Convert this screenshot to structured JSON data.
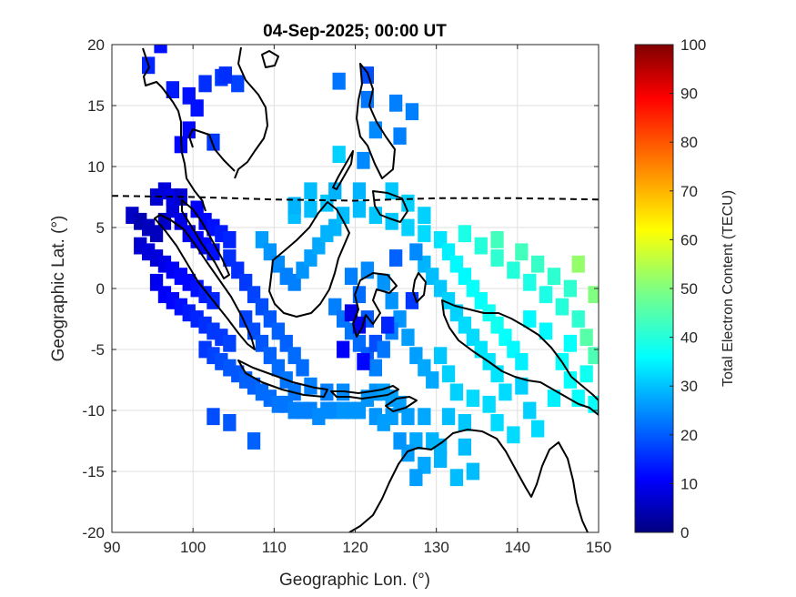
{
  "chart_data": {
    "type": "heatmap",
    "title": "04-Sep-2025; 00:00 UT",
    "xlabel": "Geographic Lon. (°)",
    "ylabel": "Geographic Lat. (°)",
    "xlim": [
      90,
      150
    ],
    "ylim": [
      -20,
      20
    ],
    "xticks": [
      90,
      100,
      110,
      120,
      130,
      140,
      150
    ],
    "yticks": [
      -20,
      -15,
      -10,
      -5,
      0,
      5,
      10,
      15,
      20
    ],
    "grid": true,
    "colorbar": {
      "label": "Total Electron Content (TECU)",
      "range": [
        0,
        100
      ],
      "ticks": [
        0,
        10,
        20,
        30,
        40,
        50,
        60,
        70,
        80,
        90,
        100
      ],
      "colormap": "jet"
    },
    "magnetic_equator": [
      [
        90,
        7.6
      ],
      [
        100,
        7.5
      ],
      [
        110,
        7.3
      ],
      [
        120,
        7.2
      ],
      [
        130,
        7.4
      ],
      [
        140,
        7.4
      ],
      [
        150,
        7.3
      ]
    ],
    "cells": [
      [
        94.5,
        18.3,
        16
      ],
      [
        97.5,
        16.3,
        15
      ],
      [
        99.5,
        15.8,
        14
      ],
      [
        101.5,
        16.8,
        17
      ],
      [
        103.5,
        17.3,
        18
      ],
      [
        105.5,
        16.8,
        19
      ],
      [
        100.5,
        14.8,
        14
      ],
      [
        98.5,
        11.8,
        13
      ],
      [
        102.5,
        12.0,
        18
      ],
      [
        104.0,
        17.5,
        17
      ],
      [
        118.0,
        17.0,
        24
      ],
      [
        121.5,
        17.5,
        20
      ],
      [
        121.5,
        15.5,
        24
      ],
      [
        125.0,
        15.2,
        25
      ],
      [
        127.0,
        14.5,
        25
      ],
      [
        122.5,
        13.0,
        26
      ],
      [
        125.5,
        12.5,
        25
      ],
      [
        118.0,
        11.0,
        33
      ],
      [
        121.0,
        10.5,
        26
      ],
      [
        92.5,
        6.0,
        7
      ],
      [
        93.5,
        5.5,
        5
      ],
      [
        94.5,
        5.0,
        6
      ],
      [
        95.5,
        4.5,
        6
      ],
      [
        96.5,
        5.5,
        7
      ],
      [
        97.5,
        6.5,
        9
      ],
      [
        98.5,
        5.5,
        10
      ],
      [
        99.5,
        4.5,
        11
      ],
      [
        100.5,
        4.0,
        13
      ],
      [
        101.5,
        3.5,
        13
      ],
      [
        102.5,
        3.0,
        14
      ],
      [
        95.5,
        7.5,
        8
      ],
      [
        96.5,
        8.0,
        9
      ],
      [
        97.5,
        7.5,
        10
      ],
      [
        98.5,
        7.5,
        8
      ],
      [
        100.5,
        6.5,
        12
      ],
      [
        101.5,
        5.5,
        13
      ],
      [
        102.5,
        5.0,
        14
      ],
      [
        103.5,
        4.5,
        15
      ],
      [
        104.5,
        4.0,
        16
      ],
      [
        93.5,
        3.5,
        8
      ],
      [
        94.5,
        3.0,
        9
      ],
      [
        95.5,
        2.5,
        9
      ],
      [
        96.5,
        2.0,
        10
      ],
      [
        97.5,
        1.5,
        12
      ],
      [
        98.5,
        1.0,
        13
      ],
      [
        99.5,
        0.5,
        13
      ],
      [
        100.5,
        0.0,
        14
      ],
      [
        101.5,
        -0.5,
        15
      ],
      [
        102.5,
        -1.0,
        16
      ],
      [
        95.5,
        0.5,
        11
      ],
      [
        96.5,
        -0.5,
        12
      ],
      [
        97.5,
        -1.0,
        13
      ],
      [
        98.5,
        -1.5,
        14
      ],
      [
        99.5,
        -2.0,
        15
      ],
      [
        100.5,
        -2.5,
        16
      ],
      [
        101.5,
        -3.0,
        17
      ],
      [
        102.5,
        -3.5,
        18
      ],
      [
        103.5,
        -4.0,
        18
      ],
      [
        104.5,
        -4.5,
        19
      ],
      [
        101.5,
        -5.0,
        18
      ],
      [
        102.5,
        -5.5,
        19
      ],
      [
        103.5,
        -6.0,
        20
      ],
      [
        104.5,
        -6.5,
        21
      ],
      [
        105.5,
        -7.0,
        21
      ],
      [
        106.5,
        -7.5,
        22
      ],
      [
        107.5,
        -8.0,
        22
      ],
      [
        108.5,
        -8.5,
        23
      ],
      [
        109.5,
        -9.0,
        23
      ],
      [
        110.5,
        -9.5,
        24
      ],
      [
        111.5,
        -9.5,
        24
      ],
      [
        112.5,
        -10.0,
        25
      ],
      [
        113.5,
        -10.0,
        25
      ],
      [
        114.5,
        -10.0,
        25
      ],
      [
        115.5,
        -10.5,
        26
      ],
      [
        116.5,
        -10.0,
        26
      ],
      [
        117.5,
        -10.0,
        26
      ],
      [
        118.5,
        -10.0,
        27
      ],
      [
        119.5,
        -10.0,
        27
      ],
      [
        120.5,
        -10.0,
        27
      ],
      [
        104.5,
        2.5,
        17
      ],
      [
        105.5,
        1.5,
        17
      ],
      [
        106.5,
        0.5,
        18
      ],
      [
        107.5,
        -0.5,
        19
      ],
      [
        108.5,
        -1.5,
        20
      ],
      [
        109.5,
        -2.5,
        21
      ],
      [
        110.5,
        -3.5,
        22
      ],
      [
        111.5,
        -4.5,
        22
      ],
      [
        112.5,
        -5.5,
        23
      ],
      [
        113.5,
        -6.5,
        23
      ],
      [
        106.5,
        -2.5,
        19
      ],
      [
        107.5,
        -3.5,
        20
      ],
      [
        108.5,
        -4.5,
        21
      ],
      [
        109.5,
        -5.5,
        22
      ],
      [
        110.5,
        -6.5,
        23
      ],
      [
        111.5,
        -7.5,
        24
      ],
      [
        112.5,
        -8.5,
        24
      ],
      [
        114.5,
        -8.0,
        25
      ],
      [
        116.5,
        -8.5,
        25
      ],
      [
        118.5,
        -8.5,
        26
      ],
      [
        121.5,
        -9.0,
        27
      ],
      [
        122.5,
        -8.5,
        27
      ],
      [
        123.5,
        -8.5,
        28
      ],
      [
        124.5,
        -9.0,
        28
      ],
      [
        125.5,
        -9.5,
        28
      ],
      [
        122.5,
        -10.5,
        27
      ],
      [
        124.5,
        -10.5,
        28
      ],
      [
        126.5,
        -10.5,
        28
      ],
      [
        128.5,
        -10.5,
        29
      ],
      [
        123.5,
        -11.0,
        28
      ],
      [
        108.5,
        4.0,
        28
      ],
      [
        109.5,
        3.0,
        27
      ],
      [
        110.5,
        2.0,
        26
      ],
      [
        111.5,
        1.0,
        25
      ],
      [
        112.5,
        0.5,
        25
      ],
      [
        113.5,
        1.5,
        27
      ],
      [
        114.5,
        2.5,
        28
      ],
      [
        115.5,
        3.5,
        29
      ],
      [
        116.5,
        4.5,
        30
      ],
      [
        117.5,
        5.0,
        30
      ],
      [
        112.5,
        6.0,
        31
      ],
      [
        114.5,
        6.5,
        31
      ],
      [
        116.5,
        7.0,
        32
      ],
      [
        118.5,
        6.0,
        31
      ],
      [
        120.5,
        6.5,
        31
      ],
      [
        122.5,
        6.0,
        32
      ],
      [
        124.5,
        5.5,
        32
      ],
      [
        126.5,
        5.0,
        33
      ],
      [
        128.5,
        4.5,
        34
      ],
      [
        130.5,
        4.0,
        35
      ],
      [
        117.5,
        -1.5,
        25
      ],
      [
        118.5,
        -2.5,
        24
      ],
      [
        119.5,
        -3.5,
        24
      ],
      [
        120.5,
        -4.5,
        23
      ],
      [
        121.5,
        -5.5,
        22
      ],
      [
        122.5,
        -4.5,
        20
      ],
      [
        121.5,
        -2.5,
        21
      ],
      [
        120.5,
        -0.5,
        23
      ],
      [
        119.5,
        1.0,
        25
      ],
      [
        121.5,
        1.5,
        26
      ],
      [
        123.5,
        0.5,
        27
      ],
      [
        124.5,
        -1.0,
        27
      ],
      [
        125.5,
        -2.5,
        27
      ],
      [
        126.5,
        -4.0,
        28
      ],
      [
        127.5,
        -5.5,
        28
      ],
      [
        128.5,
        -6.5,
        29
      ],
      [
        129.5,
        -7.5,
        29
      ],
      [
        124.5,
        -3.5,
        25
      ],
      [
        123.5,
        -5.0,
        24
      ],
      [
        122.5,
        -6.5,
        25
      ],
      [
        128.5,
        2.0,
        30
      ],
      [
        129.5,
        1.0,
        31
      ],
      [
        130.5,
        0.0,
        32
      ],
      [
        131.5,
        -1.0,
        33
      ],
      [
        132.5,
        -2.0,
        33
      ],
      [
        133.5,
        -3.0,
        34
      ],
      [
        134.5,
        -4.0,
        34
      ],
      [
        135.5,
        -5.0,
        35
      ],
      [
        136.5,
        -6.0,
        35
      ],
      [
        137.5,
        -7.0,
        35
      ],
      [
        131.5,
        3.0,
        36
      ],
      [
        132.5,
        2.0,
        37
      ],
      [
        133.5,
        1.0,
        37
      ],
      [
        134.5,
        0.0,
        38
      ],
      [
        135.5,
        -1.0,
        38
      ],
      [
        136.5,
        -2.0,
        39
      ],
      [
        137.5,
        -3.0,
        39
      ],
      [
        138.5,
        -4.0,
        38
      ],
      [
        139.5,
        -5.0,
        37
      ],
      [
        140.5,
        -6.0,
        36
      ],
      [
        133.5,
        4.5,
        40
      ],
      [
        135.5,
        3.5,
        41
      ],
      [
        137.5,
        2.5,
        42
      ],
      [
        139.5,
        1.5,
        41
      ],
      [
        141.5,
        0.5,
        40
      ],
      [
        143.5,
        -0.5,
        40
      ],
      [
        145.5,
        -1.5,
        41
      ],
      [
        147.5,
        -2.5,
        42
      ],
      [
        144.5,
        1.0,
        42
      ],
      [
        146.5,
        0.0,
        42
      ],
      [
        137.5,
        4.0,
        44
      ],
      [
        140.5,
        3.0,
        44
      ],
      [
        142.5,
        2.0,
        43
      ],
      [
        147.5,
        2.0,
        52
      ],
      [
        149.5,
        -0.5,
        50
      ],
      [
        148.5,
        -4.0,
        46
      ],
      [
        149.5,
        -5.5,
        45
      ],
      [
        146.5,
        -4.5,
        38
      ],
      [
        143.5,
        -3.5,
        37
      ],
      [
        141.5,
        -2.5,
        37
      ],
      [
        130.5,
        -5.5,
        32
      ],
      [
        131.5,
        -7.0,
        33
      ],
      [
        132.5,
        -8.5,
        33
      ],
      [
        134.5,
        -9.0,
        34
      ],
      [
        136.5,
        -9.5,
        34
      ],
      [
        138.5,
        -8.5,
        34
      ],
      [
        140.5,
        -8.0,
        33
      ],
      [
        141.5,
        -10.0,
        33
      ],
      [
        142.5,
        -11.5,
        34
      ],
      [
        144.5,
        -9.0,
        36
      ],
      [
        147.5,
        -9.0,
        38
      ],
      [
        149.5,
        -9.5,
        38
      ],
      [
        146.5,
        -7.5,
        38
      ],
      [
        148.5,
        -7.0,
        39
      ],
      [
        145.5,
        -6.0,
        38
      ],
      [
        139.5,
        -12.0,
        34
      ],
      [
        137.5,
        -11.0,
        34
      ],
      [
        133.5,
        -11.0,
        32
      ],
      [
        131.5,
        -10.5,
        31
      ],
      [
        129.5,
        -12.5,
        30
      ],
      [
        127.5,
        -12.5,
        29
      ],
      [
        126.5,
        -13.5,
        28
      ],
      [
        128.5,
        -14.5,
        29
      ],
      [
        130.5,
        -14.0,
        30
      ],
      [
        132.5,
        -15.5,
        31
      ],
      [
        134.5,
        -15.0,
        31
      ],
      [
        127.5,
        -15.5,
        28
      ],
      [
        130.5,
        -13.0,
        30
      ],
      [
        125.5,
        -12.5,
        27
      ],
      [
        133.5,
        -13.0,
        31
      ],
      [
        102.5,
        -10.5,
        20
      ],
      [
        104.5,
        -11.0,
        21
      ],
      [
        107.5,
        -12.5,
        22
      ],
      [
        112.5,
        6.8,
        30
      ],
      [
        114.5,
        8.0,
        31
      ],
      [
        117.5,
        8.0,
        30
      ],
      [
        120.5,
        8.0,
        30
      ],
      [
        124.5,
        8.0,
        32
      ],
      [
        126.5,
        7.0,
        33
      ],
      [
        128.5,
        6.0,
        33
      ],
      [
        96.0,
        20.0,
        14
      ],
      [
        99.5,
        13.0,
        13
      ],
      [
        119.5,
        -2.0,
        10
      ],
      [
        120.5,
        -3.0,
        11
      ],
      [
        121.0,
        -6.0,
        13
      ],
      [
        118.5,
        -5.0,
        12
      ],
      [
        124.0,
        -3.0,
        16
      ],
      [
        127.0,
        -1.0,
        18
      ],
      [
        125.0,
        2.5,
        22
      ],
      [
        127.5,
        3.0,
        26
      ]
    ]
  }
}
